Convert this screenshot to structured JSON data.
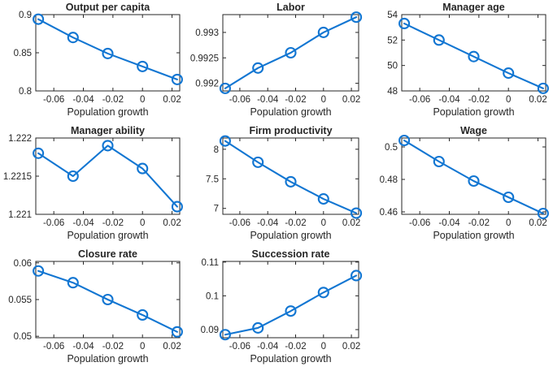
{
  "figure": {
    "description": "Eight-panel comparative statics figure of steady-state outcomes versus population growth"
  },
  "style": {
    "background_color": "#ffffff",
    "line_color": "#1276d2",
    "marker": "open-circle",
    "axis_color": "#262626",
    "text_color": "#262626",
    "line_width": 2.1,
    "marker_radius": 6
  },
  "chart_data": [
    {
      "type": "line",
      "title": "Output per capita",
      "xlabel": "Population growth",
      "x": [
        -0.0705,
        -0.047,
        -0.0235,
        0,
        0.0235
      ],
      "y": [
        0.894,
        0.87,
        0.849,
        0.832,
        0.815
      ],
      "xlim": [
        -0.0722,
        0.0252
      ],
      "ylim": [
        0.8,
        0.9
      ],
      "xticks": [
        -0.06,
        -0.04,
        -0.02,
        0,
        0.02
      ],
      "xtick_labels": [
        "-0.06",
        "-0.04",
        "-0.02",
        "0",
        "0.02"
      ],
      "yticks": [
        0.8,
        0.85,
        0.9
      ],
      "ytick_labels": [
        "0.8",
        "0.85",
        "0.9"
      ],
      "grid": false,
      "legend": null
    },
    {
      "type": "line",
      "title": "Labor",
      "xlabel": "Population growth",
      "x": [
        -0.0705,
        -0.047,
        -0.0235,
        0,
        0.0235
      ],
      "y": [
        0.9919,
        0.9923,
        0.9926,
        0.993,
        0.9933
      ],
      "xlim": [
        -0.0722,
        0.0252
      ],
      "ylim": [
        0.99185,
        0.99335
      ],
      "xticks": [
        -0.06,
        -0.04,
        -0.02,
        0,
        0.02
      ],
      "xtick_labels": [
        "-0.06",
        "-0.04",
        "-0.02",
        "0",
        "0.02"
      ],
      "yticks": [
        0.992,
        0.9925,
        0.993
      ],
      "ytick_labels": [
        "0.992",
        "0.9925",
        "0.993"
      ],
      "grid": false,
      "legend": null
    },
    {
      "type": "line",
      "title": "Manager age",
      "xlabel": "Population growth",
      "x": [
        -0.0705,
        -0.047,
        -0.0235,
        0,
        0.0235
      ],
      "y": [
        53.3,
        52.0,
        50.7,
        49.4,
        48.2
      ],
      "xlim": [
        -0.0722,
        0.0252
      ],
      "ylim": [
        48,
        54
      ],
      "xticks": [
        -0.06,
        -0.04,
        -0.02,
        0,
        0.02
      ],
      "xtick_labels": [
        "-0.06",
        "-0.04",
        "-0.02",
        "0",
        "0.02"
      ],
      "yticks": [
        48,
        50,
        52,
        54
      ],
      "ytick_labels": [
        "48",
        "50",
        "52",
        "54"
      ],
      "grid": false,
      "legend": null
    },
    {
      "type": "line",
      "title": "Manager ability",
      "xlabel": "Population growth",
      "x": [
        -0.0705,
        -0.047,
        -0.0235,
        0,
        0.0235
      ],
      "y": [
        1.2218,
        1.2215,
        1.2219,
        1.2216,
        1.2211
      ],
      "xlim": [
        -0.0722,
        0.0252
      ],
      "ylim": [
        1.221,
        1.222
      ],
      "xticks": [
        -0.06,
        -0.04,
        -0.02,
        0,
        0.02
      ],
      "xtick_labels": [
        "-0.06",
        "-0.04",
        "-0.02",
        "0",
        "0.02"
      ],
      "yticks": [
        1.221,
        1.2215,
        1.222
      ],
      "ytick_labels": [
        "1.221",
        "1.2215",
        "1.222"
      ],
      "grid": false,
      "legend": null
    },
    {
      "type": "line",
      "title": "Firm productivity",
      "xlabel": "Population growth",
      "x": [
        -0.0705,
        -0.047,
        -0.0235,
        0,
        0.0235
      ],
      "y": [
        8.14,
        7.78,
        7.45,
        7.16,
        6.92
      ],
      "xlim": [
        -0.0722,
        0.0252
      ],
      "ylim": [
        6.9,
        8.19
      ],
      "xticks": [
        -0.06,
        -0.04,
        -0.02,
        0,
        0.02
      ],
      "xtick_labels": [
        "-0.06",
        "-0.04",
        "-0.02",
        "0",
        "0.02"
      ],
      "yticks": [
        7,
        7.5,
        8
      ],
      "ytick_labels": [
        "7",
        "7.5",
        "8"
      ],
      "grid": false,
      "legend": null
    },
    {
      "type": "line",
      "title": "Wage",
      "xlabel": "Population growth",
      "x": [
        -0.0705,
        -0.047,
        -0.0235,
        0,
        0.0235
      ],
      "y": [
        0.504,
        0.491,
        0.479,
        0.469,
        0.459
      ],
      "xlim": [
        -0.0722,
        0.0252
      ],
      "ylim": [
        0.4585,
        0.5055
      ],
      "xticks": [
        -0.06,
        -0.04,
        -0.02,
        0,
        0.02
      ],
      "xtick_labels": [
        "-0.06",
        "-0.04",
        "-0.02",
        "0",
        "0.02"
      ],
      "yticks": [
        0.46,
        0.48,
        0.5
      ],
      "ytick_labels": [
        "0.46",
        "0.48",
        "0.5"
      ],
      "grid": false,
      "legend": null
    },
    {
      "type": "line",
      "title": "Closure rate",
      "xlabel": "Population growth",
      "x": [
        -0.0705,
        -0.047,
        -0.0235,
        0,
        0.0235
      ],
      "y": [
        0.0589,
        0.0573,
        0.055,
        0.0529,
        0.0506
      ],
      "xlim": [
        -0.0722,
        0.0252
      ],
      "ylim": [
        0.0498,
        0.0602
      ],
      "xticks": [
        -0.06,
        -0.04,
        -0.02,
        0,
        0.02
      ],
      "xtick_labels": [
        "-0.06",
        "-0.04",
        "-0.02",
        "0",
        "0.02"
      ],
      "yticks": [
        0.05,
        0.055,
        0.06
      ],
      "ytick_labels": [
        "0.05",
        "0.055",
        "0.06"
      ],
      "grid": false,
      "legend": null
    },
    {
      "type": "line",
      "title": "Succession rate",
      "xlabel": "Population growth",
      "x": [
        -0.0705,
        -0.047,
        -0.0235,
        0,
        0.0235
      ],
      "y": [
        0.0885,
        0.0905,
        0.0955,
        0.101,
        0.106
      ],
      "xlim": [
        -0.0722,
        0.0252
      ],
      "ylim": [
        0.0876,
        0.1102
      ],
      "xticks": [
        -0.06,
        -0.04,
        -0.02,
        0,
        0.02
      ],
      "xtick_labels": [
        "-0.06",
        "-0.04",
        "-0.02",
        "0",
        "0.02"
      ],
      "yticks": [
        0.09,
        0.1,
        0.11
      ],
      "ytick_labels": [
        "0.09",
        "0.1",
        "0.11"
      ],
      "grid": false,
      "legend": null
    }
  ]
}
